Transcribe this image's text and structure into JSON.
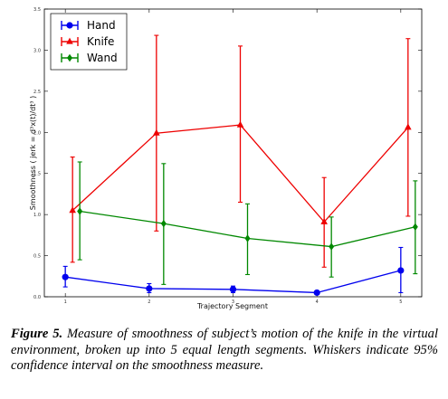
{
  "chart_data": {
    "type": "line",
    "title": "",
    "xlabel": "Trajectory Segment",
    "ylabel": "Smoothness ( jerk = d³x(t)/dt³ )",
    "x_ticks": [
      "1",
      "2",
      "3",
      "4",
      "5"
    ],
    "y_ticks": [
      "0.0",
      "0.5",
      "1.0",
      "1.5",
      "2.0",
      "2.5",
      "3.0",
      "3.5"
    ],
    "xlim": [
      0.75,
      5.25
    ],
    "ylim": [
      0,
      3.5
    ],
    "grid": false,
    "legend_position": "top-left",
    "error_bars": "95% confidence interval",
    "series": [
      {
        "name": "Hand",
        "color": "#0000ee",
        "marker": "circle",
        "x": [
          1,
          2,
          3,
          4,
          5
        ],
        "y": [
          0.24,
          0.1,
          0.09,
          0.05,
          0.32
        ],
        "ci_low": [
          0.12,
          0.05,
          0.05,
          0.03,
          0.05
        ],
        "ci_high": [
          0.37,
          0.16,
          0.13,
          0.06,
          0.6
        ]
      },
      {
        "name": "Knife",
        "color": "#ee0000",
        "marker": "triangle",
        "x": [
          1,
          2,
          3,
          4,
          5
        ],
        "y": [
          1.05,
          1.99,
          2.09,
          0.91,
          2.06
        ],
        "ci_low": [
          0.42,
          0.8,
          1.15,
          0.36,
          0.98
        ],
        "ci_high": [
          1.7,
          3.18,
          3.05,
          1.45,
          3.14
        ]
      },
      {
        "name": "Wand",
        "color": "#008800",
        "marker": "diamond",
        "x": [
          1,
          2,
          3,
          4,
          5
        ],
        "y": [
          1.04,
          0.89,
          0.71,
          0.61,
          0.85
        ],
        "ci_low": [
          0.45,
          0.15,
          0.27,
          0.24,
          0.28
        ],
        "ci_high": [
          1.64,
          1.62,
          1.13,
          0.97,
          1.41
        ]
      }
    ]
  },
  "caption": {
    "label": "Figure 5.",
    "text": " Measure of smoothness of subject’s motion of the knife in the virtual environment, broken up into 5 equal length segments. Whiskers indicate 95% confidence interval on the smoothness measure."
  }
}
